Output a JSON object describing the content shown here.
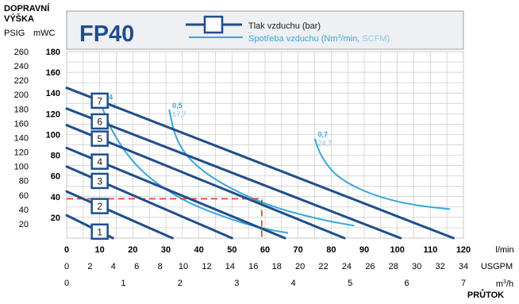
{
  "chart_data": {
    "type": "line",
    "title": "FP40",
    "left_axis_title": [
      "DOPRAVNÍ",
      "VÝŠKA"
    ],
    "psig_label": "PSIG",
    "mwc_label": "mWC",
    "legend": {
      "pressure_label": "Tlak vzduchu (bar)",
      "consumption_label_1": "Spotřeba vzduchu (Nm",
      "consumption_label_sup": "3",
      "consumption_label_2": "/min, ",
      "consumption_label_3": "SCFM)"
    },
    "colors": {
      "pressure_line": "#1f4e8c",
      "consumption_line": "#38a6d8",
      "grid": "#c8c8c8",
      "marker": "#e03a1e",
      "legend_bg": "#eef0f3"
    },
    "axes": {
      "lmin": {
        "label": "l/min",
        "ticks": [
          "0",
          "10",
          "20",
          "30",
          "40",
          "50",
          "60",
          "70",
          "80",
          "90",
          "100",
          "110",
          "120"
        ],
        "range": [
          0,
          120
        ]
      },
      "usgpm": {
        "label": "USGPM",
        "ticks": [
          "0",
          "2",
          "4",
          "6",
          "8",
          "10",
          "12",
          "14",
          "16",
          "18",
          "20",
          "22",
          "24",
          "26",
          "28",
          "30",
          "32",
          "34"
        ],
        "range": [
          0,
          34
        ]
      },
      "m3h": {
        "label_1": "m",
        "label_sup": "3",
        "label_2": "/h",
        "ticks": [
          "0",
          "1",
          "2",
          "3",
          "4",
          "5",
          "6",
          "7"
        ],
        "range": [
          0,
          7
        ]
      },
      "mwc": {
        "ticks": [
          "20",
          "40",
          "60",
          "80",
          "100",
          "120",
          "140",
          "160",
          "180"
        ],
        "range": [
          0,
          180
        ]
      },
      "psig": {
        "ticks": [
          "20",
          "40",
          "60",
          "80",
          "100",
          "120",
          "140",
          "160",
          "180",
          "200",
          "220",
          "240",
          "260"
        ],
        "range": [
          0,
          260
        ]
      },
      "x_title": "PRŮTOK",
      "grid": true
    },
    "pressure_series": [
      {
        "name": "1",
        "points": [
          [
            0,
            22
          ],
          [
            14,
            0
          ]
        ]
      },
      {
        "name": "2",
        "points": [
          [
            0,
            45
          ],
          [
            32,
            0
          ]
        ]
      },
      {
        "name": "3",
        "points": [
          [
            0,
            69
          ],
          [
            50,
            0
          ]
        ]
      },
      {
        "name": "4",
        "points": [
          [
            0,
            87
          ],
          [
            66,
            0
          ]
        ]
      },
      {
        "name": "5",
        "points": [
          [
            0,
            109
          ],
          [
            84,
            0
          ]
        ]
      },
      {
        "name": "6",
        "points": [
          [
            0,
            125
          ],
          [
            101,
            0
          ]
        ]
      },
      {
        "name": "7",
        "points": [
          [
            0,
            145
          ],
          [
            117,
            0
          ]
        ]
      }
    ],
    "air_consumption_curves": [
      {
        "bar": "0,4",
        "scfm": "14,1",
        "points": [
          [
            10,
            132
          ],
          [
            14,
            100
          ],
          [
            22,
            65
          ],
          [
            34,
            38
          ],
          [
            46,
            22
          ],
          [
            58,
            10
          ],
          [
            67,
            5
          ]
        ]
      },
      {
        "bar": "0,5",
        "scfm": "17,7",
        "points": [
          [
            31,
            124
          ],
          [
            33,
            95
          ],
          [
            38,
            72
          ],
          [
            48,
            50
          ],
          [
            62,
            30
          ],
          [
            78,
            17
          ],
          [
            87,
            12
          ]
        ]
      },
      {
        "bar": "0,7",
        "scfm": "24,7",
        "points": [
          [
            75,
            96
          ],
          [
            77,
            78
          ],
          [
            82,
            58
          ],
          [
            92,
            42
          ],
          [
            104,
            32
          ],
          [
            116,
            28
          ]
        ]
      }
    ],
    "operating_point": {
      "lmin": 59,
      "mwc": 38
    }
  }
}
